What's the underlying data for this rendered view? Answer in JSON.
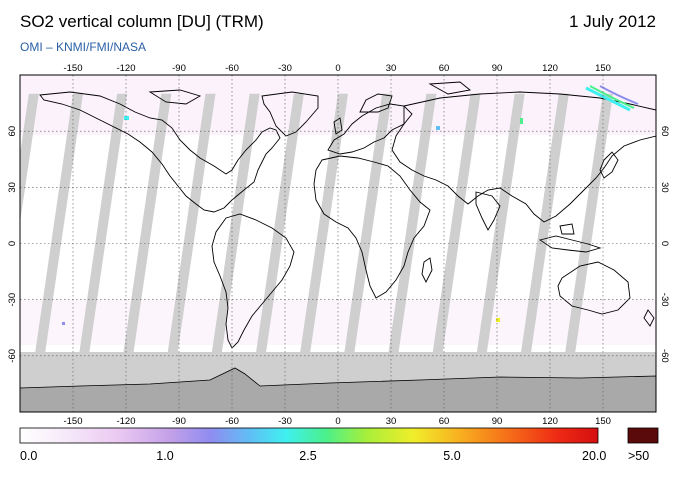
{
  "header": {
    "title": "SO2 vertical column [DU] (TRM)",
    "date": "1 July 2012",
    "credit": "OMI  –  KNMI/FMI/NASA"
  },
  "map": {
    "projection": "equirectangular",
    "lon_range": [
      -180,
      180
    ],
    "lat_range": [
      -90,
      90
    ],
    "lon_ticks_top": [
      "-150",
      "-120",
      "-90",
      "-60",
      "-30",
      "0",
      "30",
      "60",
      "90",
      "120",
      "150"
    ],
    "lon_ticks_bottom": [
      "-150",
      "-120",
      "-90",
      "-60",
      "-30",
      "0",
      "30",
      "60",
      "90",
      "120",
      "150"
    ],
    "lat_ticks": [
      "60",
      "30",
      "0",
      "-30",
      "-60"
    ],
    "grid": "dotted",
    "coastlines": true,
    "no_data_color": "#c9c9c9"
  },
  "colorbar": {
    "labels": [
      "0.0",
      "1.0",
      "2.5",
      "5.0",
      "20.0",
      ">50"
    ],
    "overflow_color": "#5a0a0a",
    "colors": [
      "#ffffff",
      "#f6e9f9",
      "#ebc9f2",
      "#c3a0e8",
      "#8f8cf0",
      "#5fc0f5",
      "#3ff0f0",
      "#4bf08a",
      "#a8ef3a",
      "#f0ee2a",
      "#f8b020",
      "#f56a18",
      "#ee2a14",
      "#d40f10"
    ]
  }
}
